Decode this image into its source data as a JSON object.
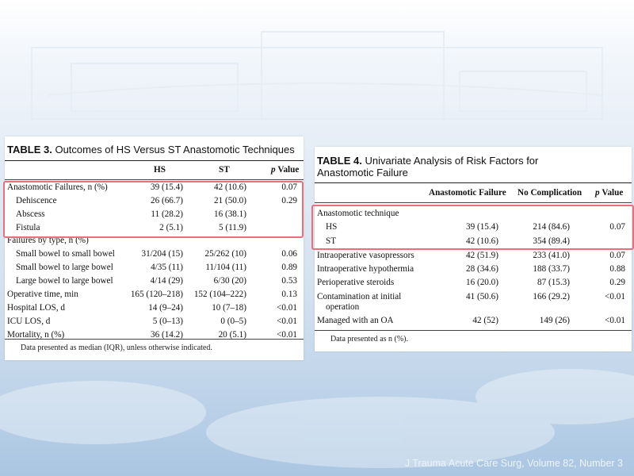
{
  "table3": {
    "title_bold": "TABLE 3.",
    "title_rest": "Outcomes of HS Versus ST Anastomotic Techniques",
    "headers": {
      "hs": "HS",
      "st": "ST",
      "p_italic": "p",
      "p_rest": "Value"
    },
    "rows": [
      {
        "label": "Anastomotic Failures, n (%)",
        "hs": "39 (15.4)",
        "st": "42 (10.6)",
        "p": "0.07"
      },
      {
        "label": "Dehiscence",
        "hs": "26 (66.7)",
        "st": "21 (50.0)",
        "p": "0.29"
      },
      {
        "label": "Abscess",
        "hs": "11 (28.2)",
        "st": "16 (38.1)",
        "p": ""
      },
      {
        "label": "Fistula",
        "hs": "2 (5.1)",
        "st": "5 (11.9)",
        "p": ""
      },
      {
        "label": "Failures by type, n (%)",
        "hs": "",
        "st": "",
        "p": ""
      },
      {
        "label": "Small bowel to small bowel",
        "hs": "31/204 (15)",
        "st": "25/262 (10)",
        "p": "0.06"
      },
      {
        "label": "Small bowel to large bowel",
        "hs": "4/35 (11)",
        "st": "11/104 (11)",
        "p": "0.89"
      },
      {
        "label": "Large bowel to large bowel",
        "hs": "4/14 (29)",
        "st": "6/30 (20)",
        "p": "0.53"
      },
      {
        "label": "Operative time, min",
        "hs": "165 (120–218)",
        "st": "152 (104–222)",
        "p": "0.13"
      },
      {
        "label": "Hospital LOS, d",
        "hs": "14 (9–24)",
        "st": "10 (7–18)",
        "p": "<0.01"
      },
      {
        "label": "ICU LOS, d",
        "hs": "5 (0–13)",
        "st": "0 (0–5)",
        "p": "<0.01"
      },
      {
        "label": "Mortality, n (%)",
        "hs": "36 (14.2)",
        "st": "20 (5.1)",
        "p": "<0.01"
      }
    ],
    "note": "Data presented as median (IQR), unless otherwise indicated."
  },
  "table4": {
    "title_bold": "TABLE 4.",
    "title_rest_line1": "Univariate Analysis of Risk Factors for",
    "title_rest_line2": "Anastomotic Failure",
    "headers": {
      "af": "Anastomotic Failure",
      "nc": "No Complication",
      "p_italic": "p",
      "p_rest": "Value"
    },
    "rows": [
      {
        "label": "Anastomotic technique",
        "af": "",
        "nc": "",
        "p": ""
      },
      {
        "label": "HS",
        "af": "39 (15.4)",
        "nc": "214 (84.6)",
        "p": "0.07"
      },
      {
        "label": "ST",
        "af": "42 (10.6)",
        "nc": "354 (89.4)",
        "p": ""
      },
      {
        "label": "Intraoperative vasopressors",
        "af": "42 (51.9)",
        "nc": "233 (41.0)",
        "p": "0.07"
      },
      {
        "label": "Intraoperative hypothermia",
        "af": "28 (34.6)",
        "nc": "188 (33.7)",
        "p": "0.88"
      },
      {
        "label": "Perioperative steroids",
        "af": "16 (20.0)",
        "nc": "87 (15.3)",
        "p": "0.29"
      },
      {
        "label": "Contamination at initial",
        "label2": "operation",
        "af": "41 (50.6)",
        "nc": "166 (29.2)",
        "p": "<0.01"
      },
      {
        "label": "Managed with an OA",
        "af": "42 (52)",
        "nc": "149 (26)",
        "p": "<0.01"
      }
    ],
    "note": "Data presented as n (%)."
  },
  "footer": "J Trauma Acute Care Surg, Volume 82, Number 3",
  "colors": {
    "highlight": "#e8707d",
    "background_top": "#ffffff",
    "background_bottom": "#aac6e2"
  }
}
